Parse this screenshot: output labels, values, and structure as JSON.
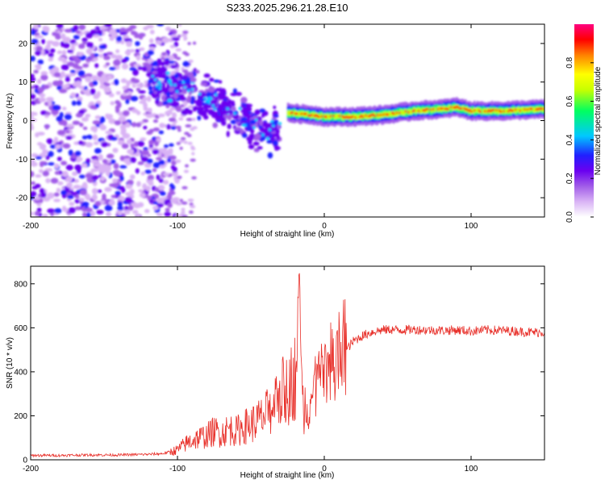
{
  "title": "S233.2025.296.21.28.E10",
  "chart_data": [
    {
      "type": "heatmap",
      "name": "spectrogram",
      "xlabel": "Height of straight line (km)",
      "ylabel": "Frequency (Hz)",
      "xlim": [
        -200,
        150
      ],
      "ylim": [
        -25,
        25
      ],
      "x_ticks": [
        -200,
        -100,
        0,
        100
      ],
      "x_tick_labels": [
        "-200",
        "-100",
        "0",
        "100"
      ],
      "y_ticks": [
        -20,
        -10,
        0,
        10,
        20
      ],
      "y_tick_labels": [
        "-20",
        "-10",
        "0",
        "10",
        "20"
      ],
      "colorbar": {
        "label": "Normalized spectral amplitude",
        "range": [
          0,
          1
        ],
        "ticks": [
          0.0,
          0.2,
          0.4,
          0.6,
          0.8
        ],
        "tick_labels": [
          "0.0",
          "0.2",
          "0.4",
          "0.6",
          "0.8"
        ],
        "colors": [
          "#ffffff",
          "#d9b3f5",
          "#a15ce8",
          "#6a00f0",
          "#2020ff",
          "#00c8ff",
          "#00ff60",
          "#c8ff00",
          "#ffff00",
          "#ff8000",
          "#ff0000",
          "#ff0080"
        ]
      },
      "features": {
        "noise_band_x_range": [
          -200,
          -100
        ],
        "descending_band": {
          "x": [
            -120,
            -100,
            -80,
            -60,
            -40,
            -30
          ],
          "freq_hz": [
            11,
            9,
            6,
            2,
            -3,
            -2
          ]
        },
        "signal_line": {
          "x": [
            -25,
            -10,
            0,
            20,
            40,
            60,
            80,
            90,
            100,
            120,
            150
          ],
          "freq_hz": [
            2,
            1.5,
            1,
            1,
            1.5,
            2.5,
            3,
            3.5,
            2.5,
            2.5,
            3
          ]
        }
      }
    },
    {
      "type": "line",
      "name": "snr",
      "xlabel": "Height of straight line (km)",
      "ylabel": "SNR (10 * v/v)",
      "xlim": [
        -200,
        150
      ],
      "ylim": [
        0,
        880
      ],
      "x_ticks": [
        -200,
        -100,
        0,
        100
      ],
      "x_tick_labels": [
        "-200",
        "-100",
        "0",
        "100"
      ],
      "y_ticks": [
        0,
        200,
        400,
        600,
        800
      ],
      "y_tick_labels": [
        "0",
        "200",
        "400",
        "600",
        "800"
      ],
      "color": "#e8302a",
      "series": [
        {
          "name": "SNR",
          "x": [
            -200,
            -180,
            -160,
            -140,
            -120,
            -110,
            -100,
            -95,
            -90,
            -85,
            -80,
            -75,
            -70,
            -65,
            -60,
            -55,
            -50,
            -45,
            -40,
            -35,
            -30,
            -25,
            -20,
            -18,
            -17,
            -16,
            -15,
            -12,
            -10,
            -5,
            0,
            5,
            10,
            15,
            20,
            25,
            30,
            35,
            40,
            45,
            50,
            60,
            70,
            80,
            90,
            100,
            110,
            120,
            130,
            140,
            150
          ],
          "y": [
            20,
            20,
            22,
            22,
            25,
            28,
            45,
            70,
            90,
            100,
            110,
            130,
            120,
            140,
            130,
            150,
            160,
            180,
            200,
            250,
            300,
            320,
            380,
            500,
            860,
            420,
            260,
            250,
            280,
            320,
            360,
            420,
            460,
            500,
            540,
            560,
            575,
            585,
            590,
            592,
            590,
            592,
            590,
            588,
            590,
            585,
            590,
            588,
            585,
            580,
            580
          ]
        }
      ]
    }
  ]
}
